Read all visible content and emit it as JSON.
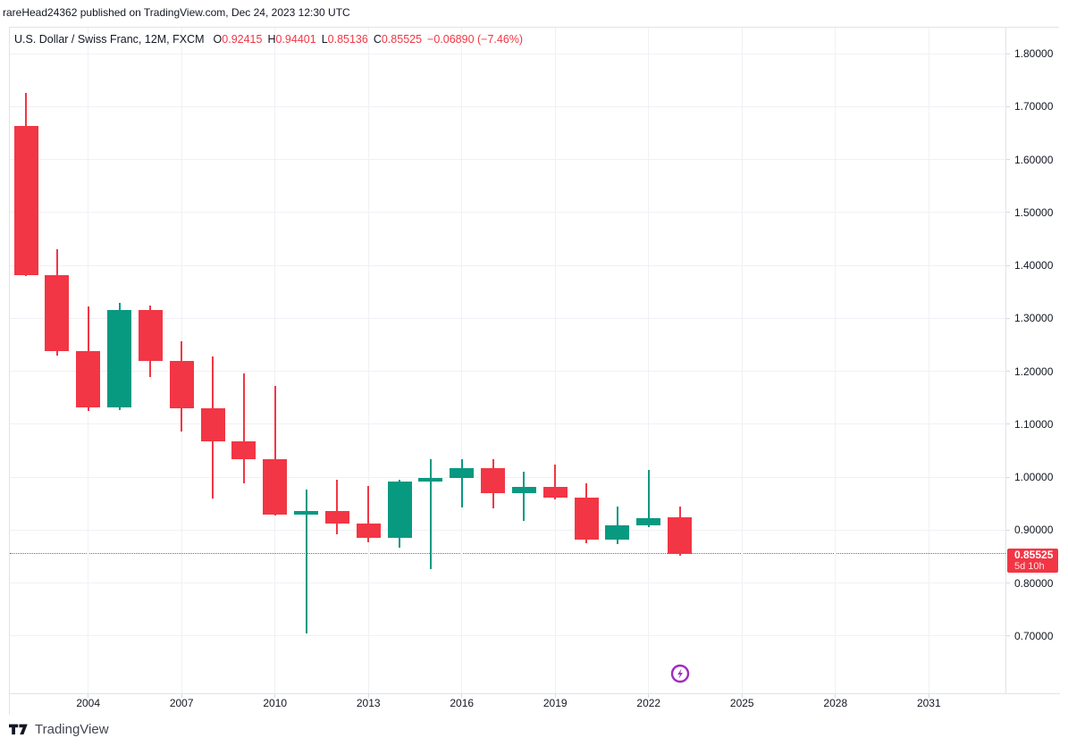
{
  "attribution": {
    "text": "rareHead24362 published on TradingView.com, Dec 24, 2023 12:30 UTC"
  },
  "legend": {
    "symbol": "U.S. Dollar / Swiss Franc, 12M, FXCM",
    "ohlc": [
      {
        "label": "O",
        "value": "0.92415"
      },
      {
        "label": "H",
        "value": "0.94401"
      },
      {
        "label": "L",
        "value": "0.85136"
      },
      {
        "label": "C",
        "value": "0.85525"
      }
    ],
    "change": "−0.06890 (−7.46%)"
  },
  "price_scale": {
    "last_price": "0.85525",
    "countdown": "5d 10h"
  },
  "footer": {
    "logo_text": "TradingView"
  },
  "icons": {
    "realtime_icon": "lightning-bolt-circle",
    "logo_icon": "tradingview-mark"
  },
  "colors": {
    "up": "#089981",
    "down": "#F23645",
    "grid": "#EFF1F6",
    "frame_border": "#E0E3EB",
    "text": "#131722",
    "badge_bg": "#F23645",
    "realtime_icon": "#A02BC4"
  },
  "chart_data": {
    "type": "candlestick",
    "title": "U.S. Dollar / Swiss Franc, 12M, FXCM",
    "timeframe": "12M",
    "exchange": "FXCM",
    "grid": true,
    "legend_position": "top-left",
    "y_axis": {
      "side": "right",
      "range": [
        0.592,
        1.849
      ],
      "ticks": [
        {
          "v": 1.8,
          "label": "1.80000"
        },
        {
          "v": 1.7,
          "label": "1.70000"
        },
        {
          "v": 1.6,
          "label": "1.60000"
        },
        {
          "v": 1.5,
          "label": "1.50000"
        },
        {
          "v": 1.4,
          "label": "1.40000"
        },
        {
          "v": 1.3,
          "label": "1.30000"
        },
        {
          "v": 1.2,
          "label": "1.20000"
        },
        {
          "v": 1.1,
          "label": "1.10000"
        },
        {
          "v": 1.0,
          "label": "1.00000"
        },
        {
          "v": 0.9,
          "label": "0.90000"
        },
        {
          "v": 0.8,
          "label": "0.80000"
        },
        {
          "v": 0.7,
          "label": "0.70000"
        }
      ]
    },
    "x_axis": {
      "range": [
        2001.483,
        2033.46
      ],
      "ticks": [
        {
          "v": 2004,
          "label": "2004"
        },
        {
          "v": 2007,
          "label": "2007"
        },
        {
          "v": 2010,
          "label": "2010"
        },
        {
          "v": 2013,
          "label": "2013"
        },
        {
          "v": 2016,
          "label": "2016"
        },
        {
          "v": 2019,
          "label": "2019"
        },
        {
          "v": 2022,
          "label": "2022"
        },
        {
          "v": 2025,
          "label": "2025"
        },
        {
          "v": 2028,
          "label": "2028"
        },
        {
          "v": 2031,
          "label": "2031"
        }
      ]
    },
    "candles": [
      {
        "year": 2002,
        "o": 1.663,
        "h": 1.726,
        "l": 1.38,
        "c": 1.382
      },
      {
        "year": 2003,
        "o": 1.382,
        "h": 1.43,
        "l": 1.23,
        "c": 1.238
      },
      {
        "year": 2004,
        "o": 1.238,
        "h": 1.323,
        "l": 1.125,
        "c": 1.132
      },
      {
        "year": 2005,
        "o": 1.132,
        "h": 1.329,
        "l": 1.127,
        "c": 1.316
      },
      {
        "year": 2006,
        "o": 1.316,
        "h": 1.324,
        "l": 1.189,
        "c": 1.22
      },
      {
        "year": 2007,
        "o": 1.22,
        "h": 1.257,
        "l": 1.086,
        "c": 1.13
      },
      {
        "year": 2008,
        "o": 1.13,
        "h": 1.228,
        "l": 0.96,
        "c": 1.068
      },
      {
        "year": 2009,
        "o": 1.068,
        "h": 1.196,
        "l": 0.988,
        "c": 1.034
      },
      {
        "year": 2010,
        "o": 1.034,
        "h": 1.172,
        "l": 0.928,
        "c": 0.93
      },
      {
        "year": 2011,
        "o": 0.93,
        "h": 0.977,
        "l": 0.705,
        "c": 0.937
      },
      {
        "year": 2012,
        "o": 0.937,
        "h": 0.995,
        "l": 0.892,
        "c": 0.913
      },
      {
        "year": 2013,
        "o": 0.913,
        "h": 0.983,
        "l": 0.877,
        "c": 0.886
      },
      {
        "year": 2014,
        "o": 0.886,
        "h": 0.995,
        "l": 0.867,
        "c": 0.992
      },
      {
        "year": 2015,
        "o": 0.992,
        "h": 1.034,
        "l": 0.826,
        "c": 0.999
      },
      {
        "year": 2016,
        "o": 0.999,
        "h": 1.034,
        "l": 0.943,
        "c": 1.017
      },
      {
        "year": 2017,
        "o": 1.017,
        "h": 1.034,
        "l": 0.941,
        "c": 0.97
      },
      {
        "year": 2018,
        "o": 0.97,
        "h": 1.01,
        "l": 0.918,
        "c": 0.982
      },
      {
        "year": 2019,
        "o": 0.982,
        "h": 1.024,
        "l": 0.958,
        "c": 0.961
      },
      {
        "year": 2020,
        "o": 0.961,
        "h": 0.988,
        "l": 0.875,
        "c": 0.882
      },
      {
        "year": 2021,
        "o": 0.882,
        "h": 0.945,
        "l": 0.874,
        "c": 0.909
      },
      {
        "year": 2022,
        "o": 0.909,
        "h": 1.014,
        "l": 0.906,
        "c": 0.923
      },
      {
        "year": 2023,
        "o": 0.92415,
        "h": 0.94401,
        "l": 0.85136,
        "c": 0.85525
      }
    ],
    "last_price_line": {
      "value": 0.85525,
      "style": "dotted",
      "color": "#F23645"
    },
    "marker": {
      "type": "realtime-lightning",
      "year": 2023
    }
  }
}
